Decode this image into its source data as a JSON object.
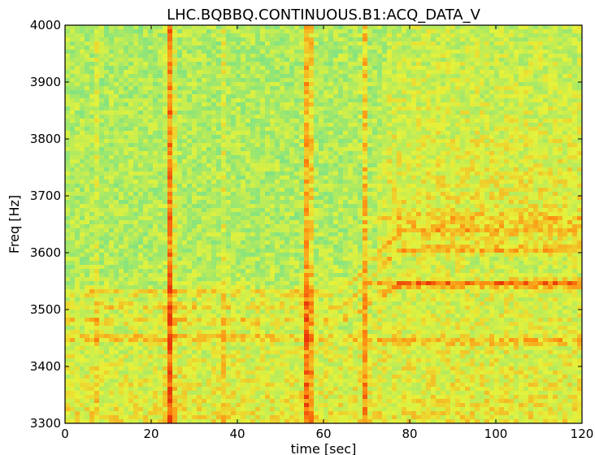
{
  "chart_data": {
    "type": "heatmap",
    "title": "LHC.BQBBQ.CONTINUOUS.B1:ACQ_DATA_V",
    "xlabel": "time [sec]",
    "ylabel": "Freq [Hz]",
    "xlim": [
      0,
      120
    ],
    "ylim": [
      3300,
      4000
    ],
    "x_ticks": [
      0,
      20,
      40,
      60,
      80,
      100,
      120
    ],
    "y_ticks": [
      3300,
      3400,
      3500,
      3600,
      3700,
      3800,
      3900,
      4000
    ],
    "x_tick_labels": [
      "0",
      "20",
      "40",
      "60",
      "80",
      "100",
      "120"
    ],
    "y_tick_labels": [
      "3300",
      "3400",
      "3500",
      "3600",
      "3700",
      "3800",
      "3900",
      "4000"
    ],
    "colormap": "jet",
    "colors": {
      "low": "#6fe08f",
      "mid": "#e6f23a",
      "high": "#ff8a10",
      "peak": "#e8380a"
    },
    "grid": false,
    "legend": "none",
    "features": {
      "vertical_bands": [
        {
          "t": 7,
          "strength": "weak"
        },
        {
          "t": 24.5,
          "strength": "strong"
        },
        {
          "t": 37,
          "strength": "weak"
        },
        {
          "t": 56.5,
          "strength": "strong"
        },
        {
          "t": 69.5,
          "strength": "medium"
        }
      ],
      "tune_lines_before_70s_hz": [
        3530,
        3505,
        3480,
        3450
      ],
      "tune_lines_after_80s_hz": [
        3660,
        3640,
        3605,
        3545,
        3445
      ]
    }
  }
}
